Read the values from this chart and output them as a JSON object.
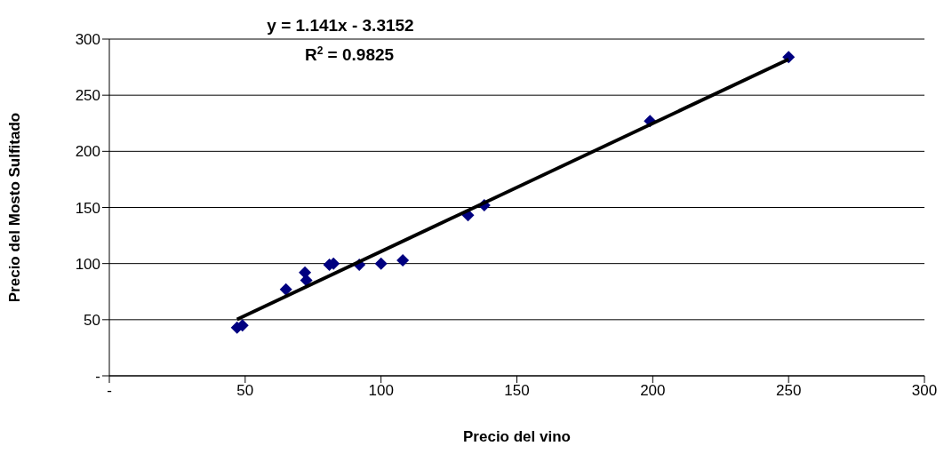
{
  "chart_data": {
    "type": "scatter",
    "xlabel": "Precio del vino",
    "ylabel": "Precio del Mosto Sulfitado",
    "annotations": [
      "y = 1.141x - 3.3152",
      "R$^{2}$ = 0.9825"
    ],
    "series": [
      {
        "color": "#000080",
        "marker": "diamond",
        "x": [
          47,
          49,
          65,
          72,
          72.5,
          81,
          82.5,
          92,
          100,
          108,
          132,
          138,
          199,
          250
        ],
        "values": [
          43,
          45,
          77,
          92,
          85,
          99,
          100,
          99,
          100,
          103,
          143,
          152,
          227,
          284
        ]
      },
      {
        "type": "line",
        "color": "#000000",
        "marker": "none",
        "x": [
          47,
          250
        ],
        "values": [
          50.3,
          282
        ]
      }
    ],
    "xlim": [
      0,
      300
    ],
    "xticks": [
      {
        "value": 0,
        "label": "-"
      },
      50,
      100,
      150,
      200,
      250,
      300
    ],
    "ylim": [
      0,
      300
    ],
    "yticks": [
      {
        "value": 0,
        "label": "-"
      },
      50,
      100,
      150,
      200,
      250,
      300
    ],
    "grid": "y"
  }
}
